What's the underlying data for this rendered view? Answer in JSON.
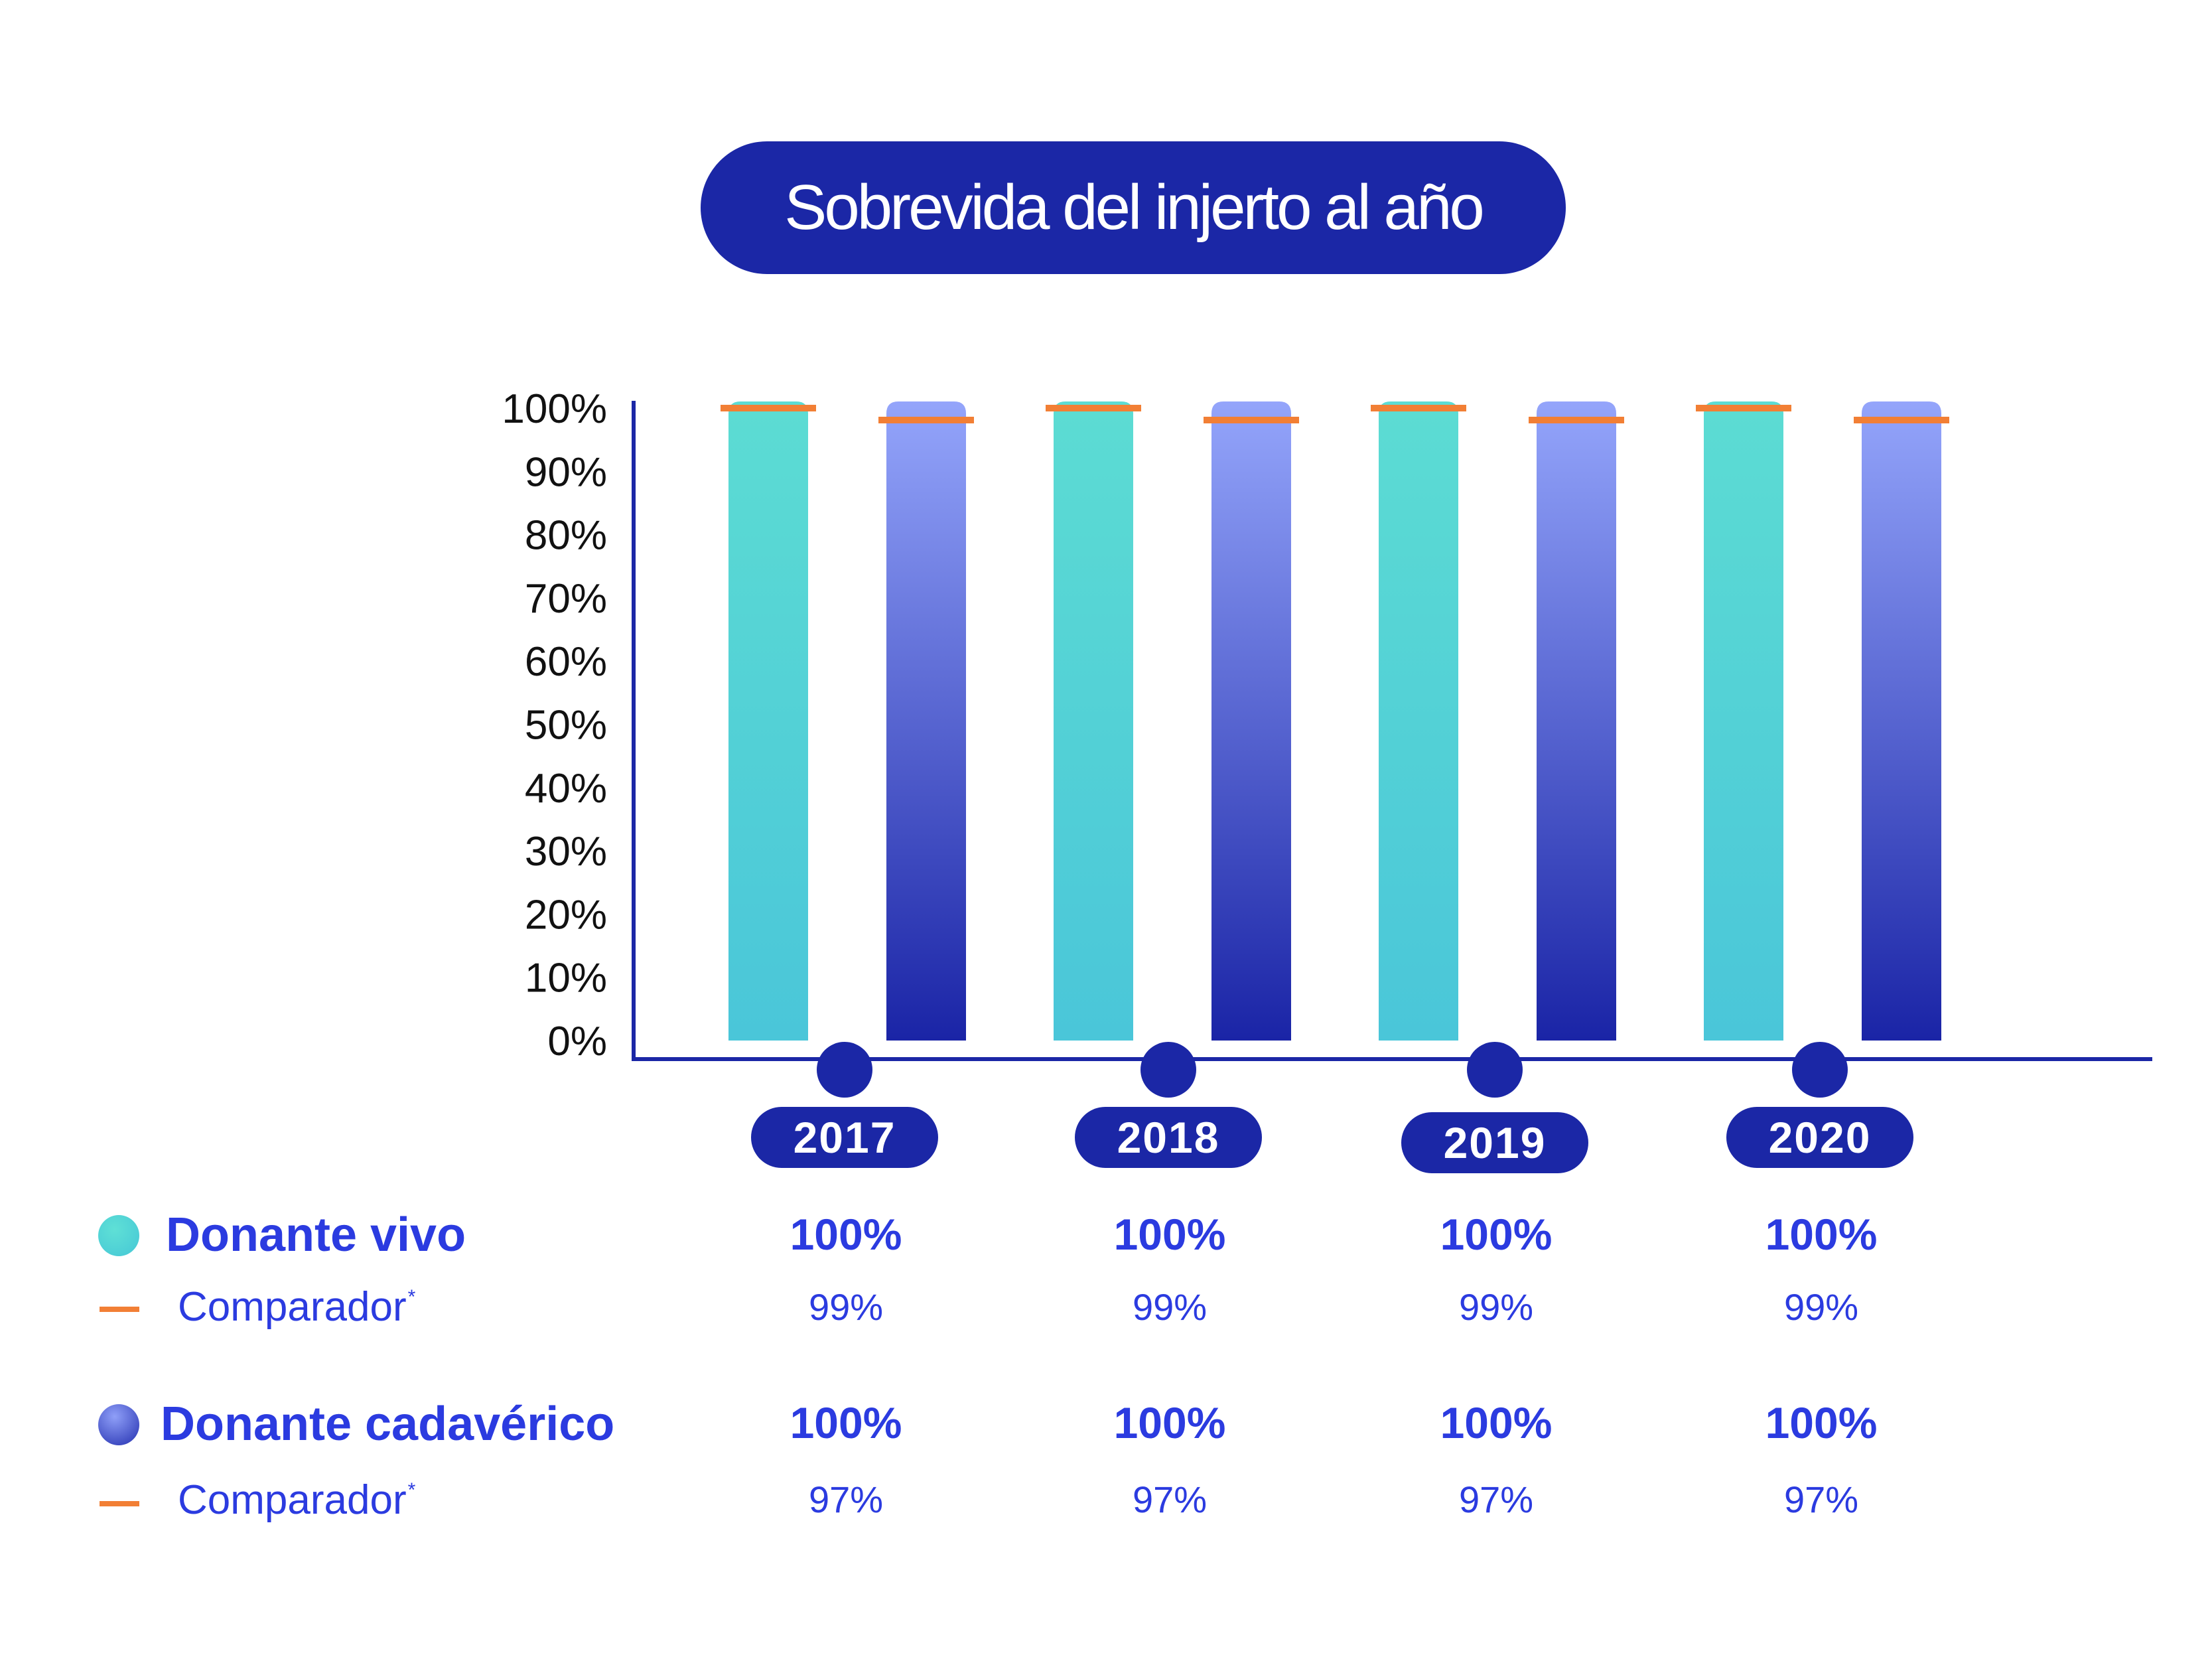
{
  "title": "Sobrevida del injerto al año",
  "chart_data": {
    "type": "bar",
    "title": "Sobrevida del injerto al año",
    "categories": [
      "2017",
      "2018",
      "2019",
      "2020"
    ],
    "y_ticks": [
      "0%",
      "10%",
      "20%",
      "30%",
      "40%",
      "50%",
      "60%",
      "70%",
      "80%",
      "90%",
      "100%"
    ],
    "ylim": [
      0,
      100
    ],
    "series": [
      {
        "name": "Donante vivo",
        "values": [
          100,
          100,
          100,
          100
        ],
        "color_top": "#5cdcd3",
        "color_bottom": "#4ac6d9"
      },
      {
        "name": "Donante cadavérico",
        "values": [
          100,
          100,
          100,
          100
        ],
        "color_top": "#94a5fb",
        "color_bottom": "#1a24a6"
      }
    ],
    "comparators": [
      {
        "name": "Comparador",
        "series": "Donante vivo",
        "values": [
          99,
          99,
          99,
          99
        ],
        "color": "#f27f35"
      },
      {
        "name": "Comparador",
        "series": "Donante cadavérico",
        "values": [
          97,
          97,
          97,
          97
        ],
        "color": "#f27f35"
      }
    ],
    "axis_color": "#1b27a6",
    "year_marker_color": "#1b27a6"
  },
  "table": {
    "rows": [
      {
        "label": "Donante vivo",
        "kind": "main",
        "values": [
          "100%",
          "100%",
          "100%",
          "100%"
        ]
      },
      {
        "label": "Comparador",
        "sup": "*",
        "kind": "sub",
        "values": [
          "99%",
          "99%",
          "99%",
          "99%"
        ]
      },
      {
        "label": "Donante cadavérico",
        "kind": "main",
        "values": [
          "100%",
          "100%",
          "100%",
          "100%"
        ]
      },
      {
        "label": "Comparador",
        "sup": "*",
        "kind": "sub",
        "values": [
          "97%",
          "97%",
          "97%",
          "97%"
        ]
      }
    ]
  }
}
